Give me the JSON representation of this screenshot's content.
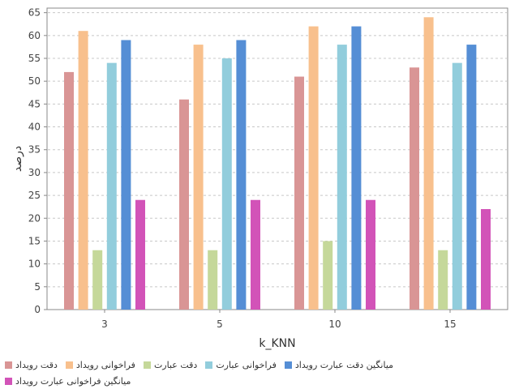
{
  "chart_data": {
    "type": "bar",
    "xlabel": "k_KNN",
    "ylabel": "درصد",
    "categories": [
      "3",
      "5",
      "10",
      "15"
    ],
    "ylim": [
      0,
      66
    ],
    "yticks": [
      0,
      5,
      10,
      15,
      20,
      25,
      30,
      35,
      40,
      45,
      50,
      55,
      60,
      65
    ],
    "grid": true,
    "legend_placement": "bottom",
    "series": [
      {
        "name": "دقت رویداد",
        "color": "#d99595",
        "values": [
          52,
          46,
          51,
          53
        ]
      },
      {
        "name": "فراخوانی رویداد",
        "color": "#f8c08d",
        "values": [
          61,
          58,
          62,
          64
        ]
      },
      {
        "name": "دقت عبارت",
        "color": "#c5d89a",
        "values": [
          13,
          13,
          15,
          13
        ]
      },
      {
        "name": "فراخوانی عبارت",
        "color": "#92cddc",
        "values": [
          54,
          55,
          58,
          54
        ]
      },
      {
        "name": "میانگین دقت عبارت رویداد",
        "color": "#558ed5",
        "values": [
          59,
          59,
          62,
          58
        ]
      },
      {
        "name": "میانگین فراخوانی عبارت رویداد",
        "color": "#d253b8",
        "values": [
          24,
          24,
          24,
          22
        ]
      }
    ]
  }
}
